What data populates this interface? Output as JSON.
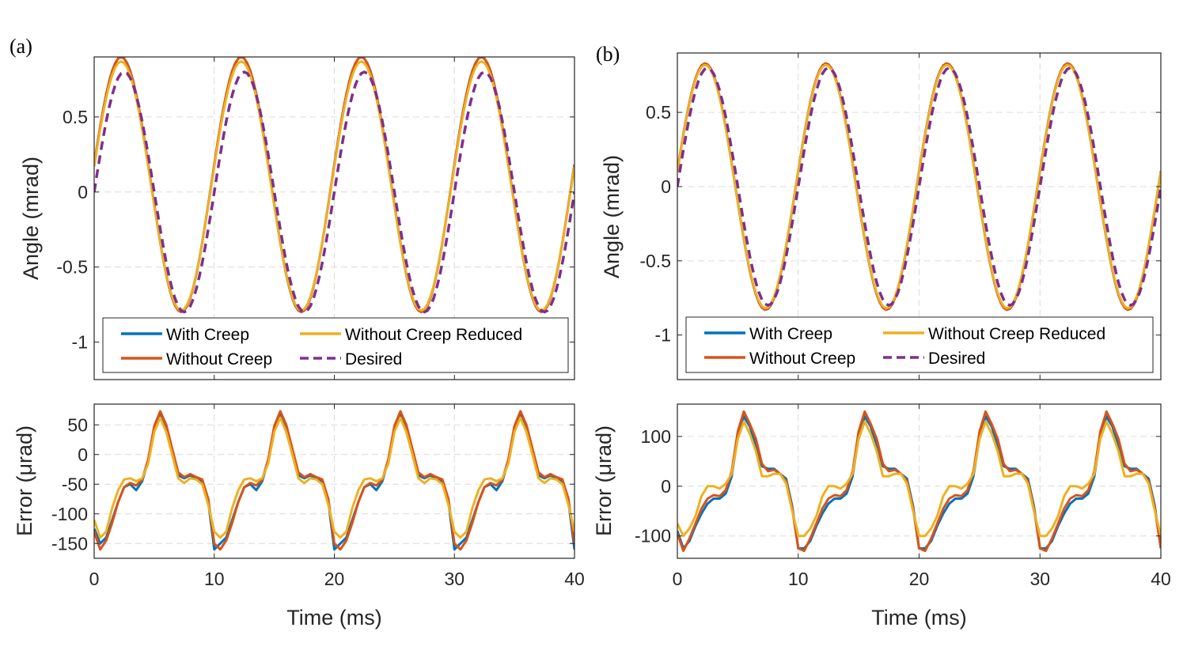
{
  "legend_labels": {
    "with_creep": "With Creep",
    "without_creep": "Without Creep",
    "without_creep_reduced": "Without Creep Reduced",
    "desired": "Desired"
  },
  "colors": {
    "with_creep": "#0072BD",
    "without_creep": "#D95319",
    "without_creep_reduced": "#EDB120",
    "desired": "#7E2F8E",
    "grid": "#DCDCDC",
    "axis": "#262626"
  },
  "chart_data": [
    {
      "panel": "(a)",
      "type": "line",
      "ylabel": "Angle (mrad)",
      "xlabel": "",
      "xlim": [
        0,
        40
      ],
      "ylim": [
        -1.25,
        0.9
      ],
      "xticks": [
        0,
        10,
        20,
        30,
        40
      ],
      "yticks": [
        0.5,
        0,
        -0.5,
        -1
      ],
      "ytick_labels": [
        "0.5",
        "0",
        "-0.5",
        "-1"
      ],
      "grid": true,
      "legend": "bottom-inside, 2 columns",
      "desired": {
        "amplitude": 0.8,
        "period_ms": 10,
        "phase_ms": 0
      },
      "series": [
        {
          "key": "with_creep",
          "amplitude": 0.85,
          "offset": 0.05,
          "phase_ms": 0.25
        },
        {
          "key": "without_creep",
          "amplitude": 0.85,
          "offset": 0.05,
          "phase_ms": 0.25
        },
        {
          "key": "without_creep_reduced",
          "amplitude": 0.83,
          "offset": 0.04,
          "phase_ms": 0.25
        }
      ]
    },
    {
      "panel": "(a)",
      "type": "line",
      "ylabel": "Error (μrad)",
      "xlabel": "Time (ms)",
      "xlim": [
        0,
        40
      ],
      "ylim": [
        -175,
        85
      ],
      "xticks": [
        0,
        10,
        20,
        30,
        40
      ],
      "xtick_labels": [
        "0",
        "10",
        "20",
        "30",
        "40"
      ],
      "yticks": [
        50,
        0,
        -50,
        -100,
        -150
      ],
      "ytick_labels": [
        "50",
        "0",
        "-50",
        "-100",
        "-150"
      ],
      "grid": true,
      "period_ms": 10,
      "series": [
        {
          "key": "with_creep",
          "t": [
            0,
            0.5,
            1,
            1.5,
            2,
            2.5,
            3,
            3.5,
            4,
            4.5,
            5,
            5.5,
            6,
            6.5,
            7,
            7.5,
            8,
            8.5,
            9,
            9.5,
            10
          ],
          "values": [
            -125,
            -150,
            -140,
            -110,
            -80,
            -55,
            -50,
            -60,
            -45,
            -10,
            45,
            70,
            45,
            5,
            -35,
            -40,
            -35,
            -40,
            -45,
            -80,
            -160
          ]
        },
        {
          "key": "without_creep",
          "t": [
            0,
            0.5,
            1,
            1.5,
            2,
            2.5,
            3,
            3.5,
            4,
            4.5,
            5,
            5.5,
            6,
            6.5,
            7,
            7.5,
            8,
            8.5,
            9,
            9.5,
            10
          ],
          "values": [
            -130,
            -160,
            -145,
            -115,
            -80,
            -55,
            -48,
            -52,
            -42,
            -8,
            48,
            73,
            50,
            10,
            -30,
            -38,
            -33,
            -38,
            -42,
            -75,
            -150
          ]
        },
        {
          "key": "without_creep_reduced",
          "t": [
            0,
            0.5,
            1,
            1.5,
            2,
            2.5,
            3,
            3.5,
            4,
            4.5,
            5,
            5.5,
            6,
            6.5,
            7,
            7.5,
            8,
            8.5,
            9,
            9.5,
            10
          ],
          "values": [
            -110,
            -140,
            -130,
            -90,
            -60,
            -42,
            -40,
            -45,
            -40,
            -15,
            38,
            62,
            38,
            0,
            -40,
            -48,
            -40,
            -42,
            -50,
            -85,
            -130
          ]
        }
      ]
    },
    {
      "panel": "(b)",
      "type": "line",
      "ylabel": "Angle (mrad)",
      "xlabel": "",
      "xlim": [
        0,
        40
      ],
      "ylim": [
        -1.3,
        0.9
      ],
      "xticks": [
        0,
        10,
        20,
        30,
        40
      ],
      "yticks": [
        0.5,
        0,
        -0.5,
        -1
      ],
      "ytick_labels": [
        "0.5",
        "0",
        "-0.5",
        "-1"
      ],
      "grid": true,
      "legend": "bottom-inside, 2 columns",
      "desired": {
        "amplitude": 0.8,
        "period_ms": 10,
        "phase_ms": 0
      },
      "series": [
        {
          "key": "with_creep",
          "amplitude": 0.83,
          "offset": 0.0,
          "phase_ms": 0.2
        },
        {
          "key": "without_creep",
          "amplitude": 0.83,
          "offset": 0.0,
          "phase_ms": 0.2
        },
        {
          "key": "without_creep_reduced",
          "amplitude": 0.82,
          "offset": 0.0,
          "phase_ms": 0.2
        }
      ]
    },
    {
      "panel": "(b)",
      "type": "line",
      "ylabel": "Error (μrad)",
      "xlabel": "Time (ms)",
      "xlim": [
        0,
        40
      ],
      "ylim": [
        -145,
        165
      ],
      "xticks": [
        0,
        10,
        20,
        30,
        40
      ],
      "xtick_labels": [
        "0",
        "10",
        "20",
        "30",
        "40"
      ],
      "yticks": [
        100,
        0,
        -100
      ],
      "ytick_labels": [
        "100",
        "0",
        "-100"
      ],
      "grid": true,
      "period_ms": 10,
      "series": [
        {
          "key": "with_creep",
          "t": [
            0,
            0.5,
            1,
            1.5,
            2,
            2.5,
            3,
            3.5,
            4,
            4.5,
            5,
            5.5,
            6,
            6.5,
            7,
            7.5,
            8,
            8.5,
            9,
            9.5,
            10
          ],
          "values": [
            -90,
            -125,
            -110,
            -80,
            -55,
            -35,
            -25,
            -25,
            -15,
            20,
            100,
            140,
            120,
            80,
            40,
            35,
            35,
            25,
            15,
            -40,
            -125
          ]
        },
        {
          "key": "without_creep",
          "t": [
            0,
            0.5,
            1,
            1.5,
            2,
            2.5,
            3,
            3.5,
            4,
            4.5,
            5,
            5.5,
            6,
            6.5,
            7,
            7.5,
            8,
            8.5,
            9,
            9.5,
            10
          ],
          "values": [
            -95,
            -130,
            -105,
            -75,
            -45,
            -25,
            -18,
            -20,
            -8,
            30,
            110,
            150,
            125,
            95,
            45,
            30,
            33,
            25,
            10,
            -45,
            -125
          ]
        },
        {
          "key": "without_creep_reduced",
          "t": [
            0,
            0.5,
            1,
            1.5,
            2,
            2.5,
            3,
            3.5,
            4,
            4.5,
            5,
            5.5,
            6,
            6.5,
            7,
            7.5,
            8,
            8.5,
            9,
            9.5,
            10
          ],
          "values": [
            -75,
            -100,
            -85,
            -60,
            -20,
            0,
            0,
            -5,
            5,
            25,
            95,
            130,
            105,
            70,
            20,
            20,
            25,
            25,
            5,
            -50,
            -100
          ]
        }
      ]
    }
  ]
}
